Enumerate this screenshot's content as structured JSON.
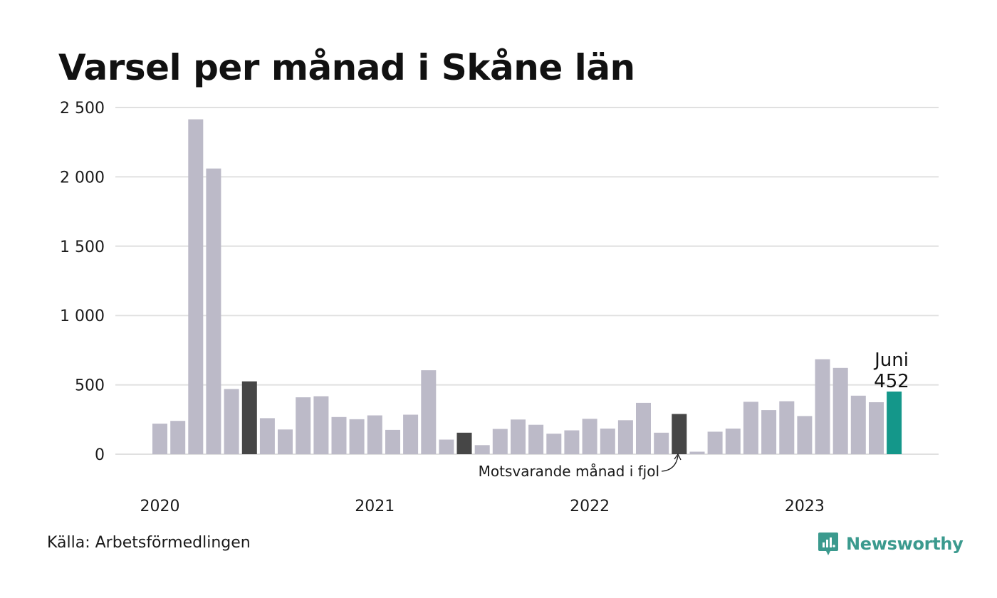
{
  "title": "Varsel per månad i Skåne län",
  "source": "Källa: Arbetsförmedlingen",
  "brand": "Newsworthy",
  "brand_icon": "newsworthy-logo-icon",
  "colors": {
    "bar": "#bcbac8",
    "highlight": "#464646",
    "current": "#14978a",
    "grid": "#e0e0e0",
    "brand": "#3b9a8e"
  },
  "annotations": {
    "current_month": "Juni",
    "current_value": "452",
    "previous_year_label": "Motsvarande månad i fjol"
  },
  "chart_data": {
    "type": "bar",
    "title": "Varsel per månad i Skåne län",
    "xlabel": "",
    "ylabel": "",
    "ylim": [
      0,
      2500
    ],
    "yticks": [
      0,
      500,
      1000,
      1500,
      2000,
      2500
    ],
    "ytick_labels": [
      "0",
      "500",
      "1 000",
      "1 500",
      "2 000",
      "2 500"
    ],
    "year_labels": [
      {
        "label": "2020",
        "index": 0
      },
      {
        "label": "2021",
        "index": 12
      },
      {
        "label": "2022",
        "index": 24
      },
      {
        "label": "2023",
        "index": 36
      }
    ],
    "grid": true,
    "legend": "none",
    "categories": [
      "2020-01",
      "2020-02",
      "2020-03",
      "2020-04",
      "2020-05",
      "2020-06",
      "2020-07",
      "2020-08",
      "2020-09",
      "2020-10",
      "2020-11",
      "2020-12",
      "2021-01",
      "2021-02",
      "2021-03",
      "2021-04",
      "2021-05",
      "2021-06",
      "2021-07",
      "2021-08",
      "2021-09",
      "2021-10",
      "2021-11",
      "2021-12",
      "2022-01",
      "2022-02",
      "2022-03",
      "2022-04",
      "2022-05",
      "2022-06",
      "2022-07",
      "2022-08",
      "2022-09",
      "2022-10",
      "2022-11",
      "2022-12",
      "2023-01",
      "2023-02",
      "2023-03",
      "2023-04",
      "2023-05",
      "2023-06"
    ],
    "values": [
      220,
      240,
      2415,
      2060,
      470,
      525,
      260,
      178,
      410,
      418,
      268,
      252,
      280,
      175,
      285,
      605,
      105,
      155,
      65,
      182,
      250,
      212,
      148,
      172,
      255,
      185,
      245,
      370,
      155,
      290,
      18,
      162,
      185,
      378,
      318,
      382,
      275,
      685,
      622,
      422,
      375,
      452
    ],
    "highlight_indices": [
      5,
      17,
      29
    ],
    "current_index": 41
  }
}
